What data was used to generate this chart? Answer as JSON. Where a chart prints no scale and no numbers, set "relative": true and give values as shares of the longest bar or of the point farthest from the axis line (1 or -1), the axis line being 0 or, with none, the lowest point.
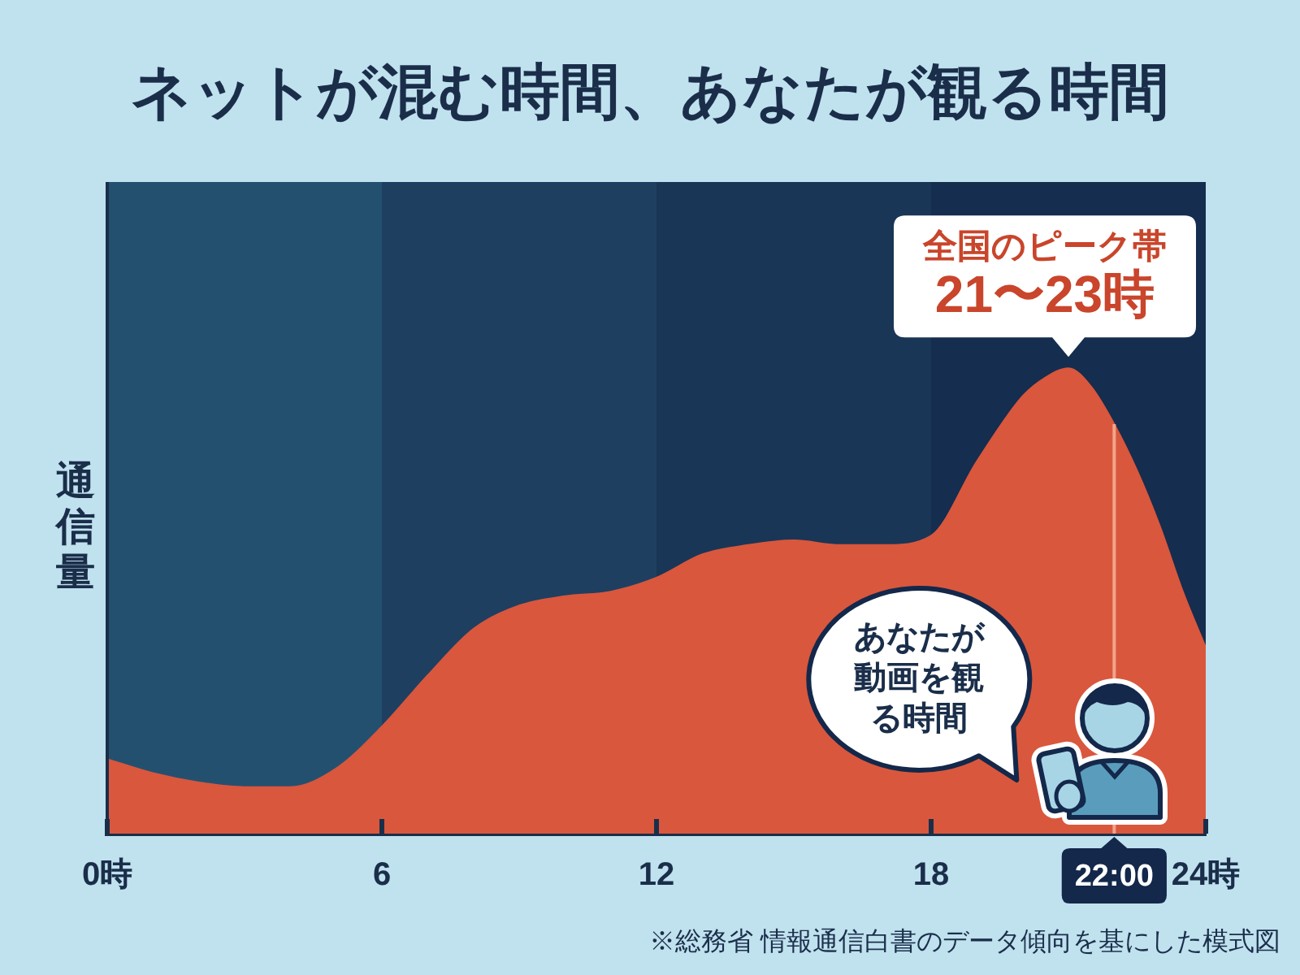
{
  "chart_data": {
    "type": "area",
    "title": "ネットが混む時間、あなたが観る時間",
    "ylabel": "通信量",
    "relative": true,
    "x": [
      0,
      1,
      2,
      3,
      4,
      5,
      6,
      7,
      8,
      9,
      10,
      11,
      12,
      13,
      14,
      15,
      16,
      17,
      18,
      19,
      20,
      20.5,
      21,
      21.5,
      22,
      22.5,
      23,
      23.5,
      24
    ],
    "values": [
      0.16,
      0.13,
      0.11,
      0.1,
      0.1,
      0.14,
      0.23,
      0.34,
      0.44,
      0.49,
      0.51,
      0.52,
      0.55,
      0.6,
      0.62,
      0.63,
      0.62,
      0.62,
      0.64,
      0.8,
      0.94,
      0.98,
      1,
      0.96,
      0.88,
      0.78,
      0.66,
      0.52,
      0.4
    ],
    "color": "#d9573d",
    "xlim": [
      0,
      24
    ],
    "xticks": [
      {
        "value": 0,
        "label": "0時"
      },
      6,
      12,
      18,
      {
        "value": 24,
        "label": "24時"
      }
    ],
    "bands": [
      {
        "axis": "x",
        "from": 0,
        "to": 6,
        "color": "#24506f"
      },
      {
        "axis": "x",
        "from": 6,
        "to": 12,
        "color": "#1e3f60"
      },
      {
        "axis": "x",
        "from": 12,
        "to": 18,
        "color": "#193656"
      },
      {
        "axis": "x",
        "from": 18,
        "to": 24,
        "color": "#152d4e"
      }
    ],
    "ref_lines": [
      {
        "axis": "x",
        "value": 22,
        "label": "22:00",
        "color": "#f2a48a"
      }
    ],
    "annotations": [
      {
        "text": "全国のピーク帯\n21〜23時",
        "x": 21,
        "y": 1
      },
      "あなたが動画を観る時間",
      "※総務省 情報通信白書のデータ傾向を基にした模式図"
    ]
  }
}
